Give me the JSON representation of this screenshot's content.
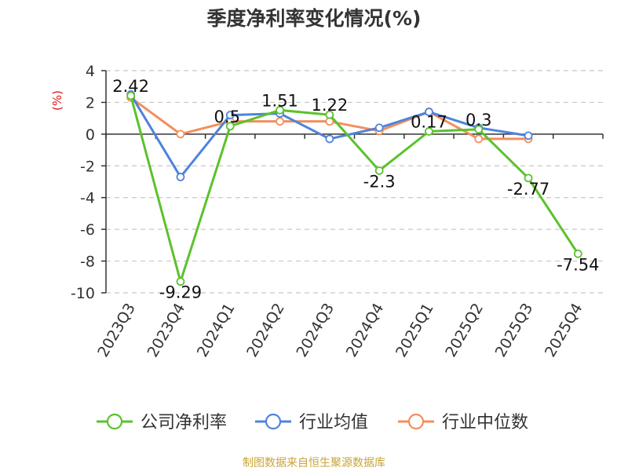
{
  "colors": {
    "公司净利率": "#5bc22b",
    "行业均值": "#4f83dc",
    "行业中位数": "#f28f5e"
  },
  "source": "制图数据来自恒生聚源数据库",
  "chart_data": {
    "type": "line",
    "title": "季度净利率变化情况(%)",
    "ylabel": "(%)",
    "xlabel": "",
    "ylim": [
      -10,
      4
    ],
    "yticks": [
      4,
      2,
      0,
      -2,
      -4,
      -6,
      -8,
      -10
    ],
    "grid": true,
    "legend": "bottom",
    "categories": [
      "2023Q3",
      "2023Q4",
      "2024Q1",
      "2024Q2",
      "2024Q3",
      "2024Q4",
      "2025Q1",
      "2025Q2",
      "2025Q3",
      "2025Q4"
    ],
    "series": [
      {
        "name": "公司净利率",
        "values": [
          2.42,
          -9.29,
          0.5,
          1.51,
          1.22,
          -2.3,
          0.17,
          0.3,
          -2.77,
          -7.54
        ],
        "labels": [
          "2.42",
          "-9.29",
          "0.5",
          "1.51",
          "1.22",
          "-2.3",
          "0.17",
          "0.3",
          "-2.77",
          "-7.54"
        ]
      },
      {
        "name": "行业均值",
        "values": [
          2.5,
          -2.7,
          1.2,
          1.3,
          -0.3,
          0.4,
          1.4,
          0.4,
          -0.1,
          null
        ]
      },
      {
        "name": "行业中位数",
        "values": [
          2.3,
          0.0,
          0.8,
          0.8,
          0.8,
          0.2,
          1.4,
          -0.3,
          -0.3,
          null
        ]
      }
    ]
  }
}
